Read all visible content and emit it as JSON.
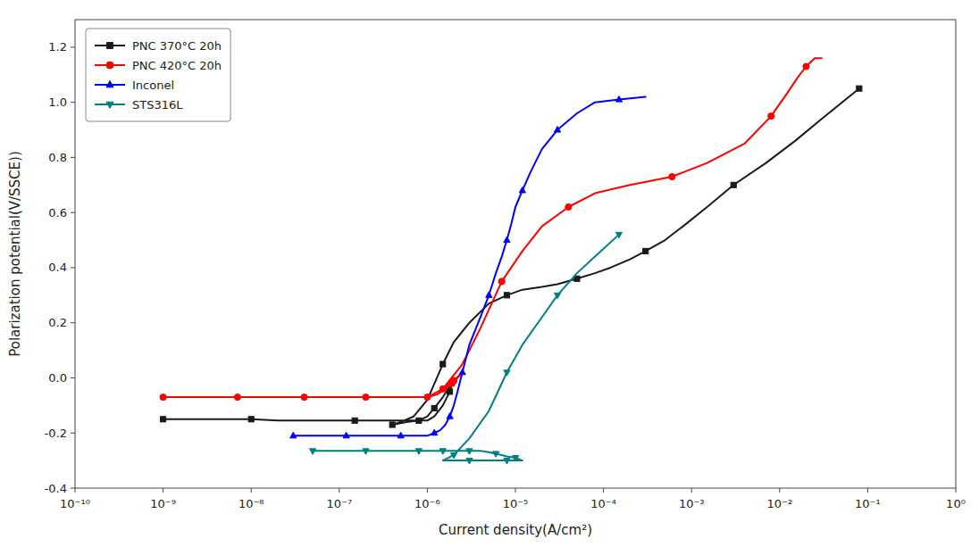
{
  "chart_data": {
    "type": "line",
    "x_label": "Current density(A/cm²)",
    "y_label": "Polarization potential(V/SSCE))",
    "log": "x",
    "grid": false,
    "legend": "upper-left",
    "xlim": [
      1e-10,
      1
    ],
    "xticks": [
      {
        "value": 1e-10,
        "label": "10⁻¹⁰"
      },
      {
        "value": 1e-09,
        "label": "10⁻⁹"
      },
      {
        "value": 1e-08,
        "label": "10⁻⁸"
      },
      {
        "value": 1e-07,
        "label": "10⁻⁷"
      },
      {
        "value": 1e-06,
        "label": "10⁻⁶"
      },
      {
        "value": 1e-05,
        "label": "10⁻⁵"
      },
      {
        "value": 0.0001,
        "label": "10⁻⁴"
      },
      {
        "value": 0.001,
        "label": "10⁻³"
      },
      {
        "value": 0.01,
        "label": "10⁻²"
      },
      {
        "value": 0.1,
        "label": "10⁻¹"
      },
      {
        "value": 1,
        "label": "10⁰"
      }
    ],
    "ylim": [
      -0.4,
      1.3
    ],
    "yticks": [
      -0.4,
      -0.2,
      {
        "value": 0.0,
        "label": "0.0"
      },
      0.2,
      0.4,
      0.6,
      0.8,
      {
        "value": 1.0,
        "label": "1.0"
      },
      1.2
    ],
    "series": [
      {
        "name": "PNC 370°C 20h",
        "color": "#1a1a1a",
        "marker": "square",
        "x": [
          1e-09,
          2e-09,
          4e-09,
          7e-09,
          1e-08,
          2e-08,
          4e-08,
          7e-08,
          1.5e-07,
          2.5e-07,
          4e-07,
          6e-07,
          8e-07,
          1e-06,
          1.2e-06,
          1.5e-06,
          1.8e-06,
          2e-06,
          1.8e-06,
          1.5e-06,
          1.2e-06,
          1e-06,
          8e-07,
          6e-07,
          4e-07,
          5e-07,
          7e-07,
          1e-06,
          1.5e-06,
          2e-06,
          3e-06,
          5e-06,
          8e-06,
          1.2e-05,
          2e-05,
          3e-05,
          5e-05,
          8e-05,
          0.00012,
          0.0002,
          0.0003,
          0.0005,
          0.0008,
          0.0015,
          0.003,
          0.007,
          0.015,
          0.03,
          0.08
        ],
        "values": [
          -0.15,
          -0.15,
          -0.15,
          -0.15,
          -0.15,
          -0.155,
          -0.155,
          -0.155,
          -0.155,
          -0.155,
          -0.155,
          -0.155,
          -0.155,
          -0.155,
          -0.14,
          -0.1,
          -0.05,
          0.0,
          -0.03,
          -0.07,
          -0.11,
          -0.14,
          -0.155,
          -0.16,
          -0.17,
          -0.16,
          -0.14,
          -0.08,
          0.05,
          0.13,
          0.2,
          0.27,
          0.3,
          0.32,
          0.33,
          0.34,
          0.36,
          0.38,
          0.4,
          0.43,
          0.46,
          0.5,
          0.55,
          0.62,
          0.7,
          0.78,
          0.86,
          0.94,
          1.05
        ]
      },
      {
        "name": "PNC 420°C 20h",
        "color": "#ff0000",
        "marker": "circle",
        "x": [
          1e-09,
          2e-09,
          4e-09,
          7e-09,
          1e-08,
          2e-08,
          4e-08,
          7e-08,
          1e-07,
          2e-07,
          4e-07,
          7e-07,
          1e-06,
          1.3e-06,
          1.6e-06,
          1.9e-06,
          2.2e-06,
          2.5e-06,
          2e-06,
          1.5e-06,
          1e-06,
          1.5e-06,
          2.5e-06,
          4e-06,
          7e-06,
          1.2e-05,
          2e-05,
          4e-05,
          8e-05,
          0.0002,
          0.0006,
          0.0015,
          0.004,
          0.008,
          0.012,
          0.016,
          0.02,
          0.025,
          0.03
        ],
        "values": [
          -0.07,
          -0.07,
          -0.07,
          -0.07,
          -0.07,
          -0.07,
          -0.07,
          -0.07,
          -0.07,
          -0.07,
          -0.07,
          -0.07,
          -0.07,
          -0.06,
          -0.04,
          -0.02,
          0.0,
          0.02,
          -0.01,
          -0.04,
          -0.07,
          -0.04,
          0.05,
          0.18,
          0.35,
          0.46,
          0.55,
          0.62,
          0.67,
          0.7,
          0.73,
          0.78,
          0.85,
          0.95,
          1.03,
          1.09,
          1.13,
          1.16,
          1.16
        ]
      },
      {
        "name": "Inconel",
        "color": "#0000ff",
        "marker": "triangle-up",
        "x": [
          3e-08,
          5e-08,
          8e-08,
          1.2e-07,
          2e-07,
          3e-07,
          5e-07,
          8e-07,
          1e-06,
          1.2e-06,
          1.4e-06,
          1.6e-06,
          1.8e-06,
          2e-06,
          2.2e-06,
          2.5e-06,
          3e-06,
          4e-06,
          5e-06,
          6e-06,
          7e-06,
          8e-06,
          9e-06,
          1e-05,
          1.2e-05,
          1.5e-05,
          2e-05,
          3e-05,
          5e-05,
          8e-05,
          0.00015,
          0.0003
        ],
        "values": [
          -0.21,
          -0.21,
          -0.21,
          -0.21,
          -0.21,
          -0.21,
          -0.21,
          -0.21,
          -0.21,
          -0.2,
          -0.19,
          -0.17,
          -0.14,
          -0.1,
          -0.05,
          0.02,
          0.12,
          0.22,
          0.3,
          0.38,
          0.44,
          0.5,
          0.56,
          0.62,
          0.68,
          0.75,
          0.83,
          0.9,
          0.96,
          1.0,
          1.01,
          1.02
        ]
      },
      {
        "name": "STS316L",
        "color": "#008080",
        "marker": "triangle-down",
        "x": [
          5e-08,
          8e-08,
          1.2e-07,
          2e-07,
          3e-07,
          5e-07,
          8e-07,
          1e-06,
          1.2e-06,
          1.5e-06,
          2e-06,
          2.5e-06,
          3e-06,
          4e-06,
          5e-06,
          6e-06,
          7e-06,
          8e-06,
          1e-05,
          1.2e-05,
          1e-05,
          8e-06,
          6e-06,
          4e-06,
          3e-06,
          2e-06,
          1.5e-06,
          2e-06,
          3e-06,
          5e-06,
          8e-06,
          1.2e-05,
          2e-05,
          3e-05,
          5e-05,
          8e-05,
          0.00015
        ],
        "values": [
          -0.265,
          -0.265,
          -0.265,
          -0.265,
          -0.265,
          -0.265,
          -0.265,
          -0.265,
          -0.265,
          -0.265,
          -0.265,
          -0.265,
          -0.265,
          -0.265,
          -0.27,
          -0.275,
          -0.28,
          -0.285,
          -0.29,
          -0.3,
          -0.3,
          -0.3,
          -0.3,
          -0.3,
          -0.3,
          -0.3,
          -0.3,
          -0.28,
          -0.22,
          -0.12,
          0.02,
          0.12,
          0.22,
          0.3,
          0.38,
          0.44,
          0.52
        ]
      }
    ]
  }
}
